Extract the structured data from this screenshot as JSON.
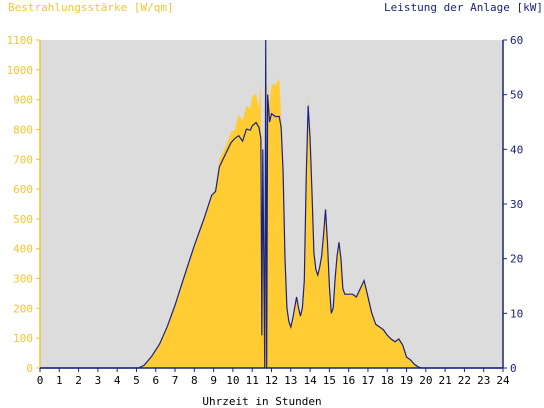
{
  "chart_data": {
    "type": "area",
    "left_axis_title": "Bestrahlungsstärke [W/qm]",
    "right_axis_title": "Leistung der Anlage [kW]",
    "xlabel": "Uhrzeit in Stunden",
    "xlim": [
      0,
      24
    ],
    "ylim_left": [
      0,
      1100
    ],
    "ylim_right": [
      0,
      60
    ],
    "x_ticks": [
      0,
      1,
      2,
      3,
      4,
      5,
      6,
      7,
      8,
      9,
      10,
      11,
      12,
      13,
      14,
      15,
      16,
      17,
      18,
      19,
      20,
      21,
      22,
      23,
      24
    ],
    "y_ticks_left": [
      0,
      100,
      200,
      300,
      400,
      500,
      600,
      700,
      800,
      900,
      1000,
      1100
    ],
    "y_ticks_right": [
      0,
      10,
      20,
      30,
      40,
      50,
      60
    ],
    "colors": {
      "irradiance": "#ffcc33",
      "power": "#1a237e",
      "left_axis_text": "#f5c431",
      "right_axis_text": "#1a237e",
      "plot_background": "#dcdcdc"
    },
    "series": [
      {
        "name": "Bestrahlungsstärke [W/qm]",
        "axis": "left",
        "color": "#ffcc33",
        "points": [
          [
            0,
            0
          ],
          [
            5.1,
            0
          ],
          [
            5.4,
            10
          ],
          [
            5.8,
            40
          ],
          [
            6.2,
            80
          ],
          [
            6.6,
            140
          ],
          [
            7.0,
            210
          ],
          [
            7.5,
            310
          ],
          [
            8.0,
            410
          ],
          [
            8.5,
            500
          ],
          [
            8.9,
            580
          ],
          [
            9.1,
            600
          ],
          [
            9.3,
            700
          ],
          [
            9.6,
            740
          ],
          [
            9.9,
            790
          ],
          [
            10.1,
            800
          ],
          [
            10.3,
            850
          ],
          [
            10.5,
            830
          ],
          [
            10.7,
            880
          ],
          [
            10.9,
            870
          ],
          [
            11.0,
            910
          ],
          [
            11.2,
            920
          ],
          [
            11.35,
            870
          ],
          [
            11.45,
            950
          ],
          [
            11.5,
            140
          ],
          [
            11.55,
            880
          ],
          [
            11.65,
            0
          ],
          [
            11.7,
            940
          ],
          [
            11.75,
            0
          ],
          [
            11.8,
            960
          ],
          [
            11.9,
            880
          ],
          [
            12.0,
            950
          ],
          [
            12.2,
            950
          ],
          [
            12.4,
            970
          ],
          [
            12.5,
            850
          ],
          [
            12.6,
            700
          ],
          [
            12.7,
            400
          ],
          [
            12.8,
            220
          ],
          [
            12.9,
            160
          ],
          [
            13.0,
            140
          ],
          [
            13.1,
            160
          ],
          [
            13.2,
            200
          ],
          [
            13.3,
            240
          ],
          [
            13.4,
            200
          ],
          [
            13.5,
            180
          ],
          [
            13.6,
            200
          ],
          [
            13.7,
            300
          ],
          [
            13.8,
            650
          ],
          [
            13.9,
            910
          ],
          [
            14.0,
            780
          ],
          [
            14.1,
            600
          ],
          [
            14.2,
            400
          ],
          [
            14.3,
            330
          ],
          [
            14.4,
            310
          ],
          [
            14.5,
            340
          ],
          [
            14.6,
            380
          ],
          [
            14.7,
            450
          ],
          [
            14.8,
            530
          ],
          [
            14.9,
            420
          ],
          [
            15.0,
            280
          ],
          [
            15.1,
            180
          ],
          [
            15.2,
            200
          ],
          [
            15.3,
            300
          ],
          [
            15.4,
            380
          ],
          [
            15.5,
            420
          ],
          [
            15.6,
            370
          ],
          [
            15.7,
            270
          ],
          [
            15.8,
            250
          ],
          [
            16.0,
            250
          ],
          [
            16.2,
            250
          ],
          [
            16.4,
            240
          ],
          [
            16.6,
            270
          ],
          [
            16.8,
            300
          ],
          [
            17.0,
            240
          ],
          [
            17.2,
            190
          ],
          [
            17.4,
            150
          ],
          [
            17.6,
            140
          ],
          [
            17.8,
            130
          ],
          [
            18.0,
            110
          ],
          [
            18.2,
            100
          ],
          [
            18.4,
            90
          ],
          [
            18.6,
            100
          ],
          [
            18.8,
            80
          ],
          [
            19.0,
            40
          ],
          [
            19.2,
            30
          ],
          [
            19.4,
            15
          ],
          [
            19.6,
            5
          ],
          [
            19.8,
            0
          ],
          [
            24,
            0
          ]
        ]
      },
      {
        "name": "Leistung der Anlage [kW]",
        "axis": "right",
        "color": "#1a237e",
        "points": [
          [
            0,
            0
          ],
          [
            5.1,
            0
          ],
          [
            5.4,
            0.5
          ],
          [
            5.8,
            2.2
          ],
          [
            6.2,
            4.4
          ],
          [
            6.6,
            7.6
          ],
          [
            7.0,
            11.5
          ],
          [
            7.5,
            17
          ],
          [
            8.0,
            22.4
          ],
          [
            8.5,
            27.3
          ],
          [
            8.9,
            31.6
          ],
          [
            9.1,
            32.3
          ],
          [
            9.3,
            36.8
          ],
          [
            9.6,
            39
          ],
          [
            9.9,
            41.2
          ],
          [
            10.1,
            42
          ],
          [
            10.3,
            42.5
          ],
          [
            10.5,
            41.5
          ],
          [
            10.7,
            43.7
          ],
          [
            10.9,
            43.5
          ],
          [
            11.0,
            44.3
          ],
          [
            11.2,
            44.9
          ],
          [
            11.35,
            44
          ],
          [
            11.45,
            42
          ],
          [
            11.5,
            6
          ],
          [
            11.55,
            40
          ],
          [
            11.65,
            0
          ],
          [
            11.7,
            61
          ],
          [
            11.75,
            0
          ],
          [
            11.8,
            50
          ],
          [
            11.9,
            45
          ],
          [
            12.0,
            46.5
          ],
          [
            12.2,
            46
          ],
          [
            12.4,
            46
          ],
          [
            12.5,
            44
          ],
          [
            12.6,
            36
          ],
          [
            12.7,
            20
          ],
          [
            12.8,
            11
          ],
          [
            12.9,
            8.5
          ],
          [
            13.0,
            7.5
          ],
          [
            13.1,
            9
          ],
          [
            13.2,
            11
          ],
          [
            13.3,
            13
          ],
          [
            13.4,
            11
          ],
          [
            13.5,
            9.5
          ],
          [
            13.6,
            11
          ],
          [
            13.7,
            16
          ],
          [
            13.8,
            35
          ],
          [
            13.9,
            48
          ],
          [
            14.0,
            42
          ],
          [
            14.1,
            32
          ],
          [
            14.2,
            21
          ],
          [
            14.3,
            18
          ],
          [
            14.4,
            17
          ],
          [
            14.5,
            18.5
          ],
          [
            14.6,
            20.5
          ],
          [
            14.7,
            24.5
          ],
          [
            14.8,
            29
          ],
          [
            14.9,
            23
          ],
          [
            15.0,
            15
          ],
          [
            15.1,
            10
          ],
          [
            15.2,
            11
          ],
          [
            15.3,
            16.5
          ],
          [
            15.4,
            20.5
          ],
          [
            15.5,
            23
          ],
          [
            15.6,
            20
          ],
          [
            15.7,
            14.5
          ],
          [
            15.8,
            13.5
          ],
          [
            16.0,
            13.5
          ],
          [
            16.2,
            13.5
          ],
          [
            16.4,
            13
          ],
          [
            16.6,
            14.5
          ],
          [
            16.8,
            16
          ],
          [
            17.0,
            13
          ],
          [
            17.2,
            10
          ],
          [
            17.4,
            8
          ],
          [
            17.6,
            7.5
          ],
          [
            17.8,
            7
          ],
          [
            18.0,
            6
          ],
          [
            18.2,
            5.3
          ],
          [
            18.4,
            4.8
          ],
          [
            18.6,
            5.3
          ],
          [
            18.8,
            4.2
          ],
          [
            19.0,
            2
          ],
          [
            19.2,
            1.5
          ],
          [
            19.4,
            0.7
          ],
          [
            19.6,
            0.2
          ],
          [
            19.8,
            0
          ],
          [
            24,
            0
          ]
        ]
      }
    ]
  }
}
